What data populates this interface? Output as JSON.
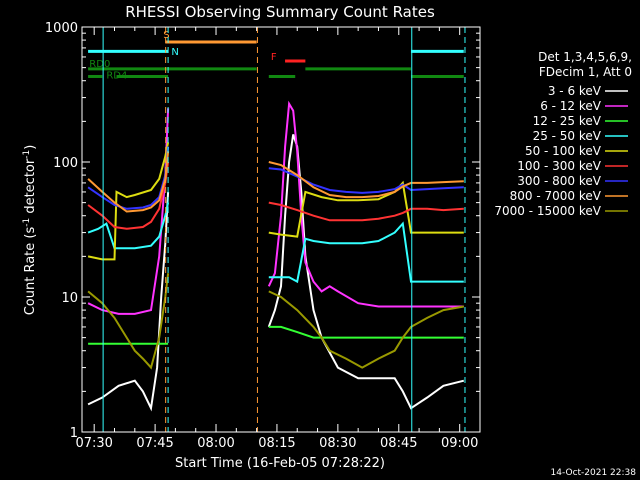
{
  "chart_data": {
    "type": "line",
    "title": "RHESSI Observing Summary Count Rates",
    "xlabel": "Start Time (16-Feb-05 07:28:22)",
    "ylabel": "Count Rate (s⁻¹ detector⁻¹)",
    "ylabel_main": "Count Rate (s",
    "ylabel_sup1": "-1",
    "ylabel_mid": " detector",
    "ylabel_sup2": "-1",
    "ylabel_end": ")",
    "y_scale": "log",
    "ylim": [
      1,
      1000
    ],
    "xlim_minutes": [
      7.47,
      95.5
    ],
    "x_ticks": [
      {
        "label": "07:30",
        "min": 30
      },
      {
        "label": "07:45",
        "min": 45
      },
      {
        "label": "08:00",
        "min": 60
      },
      {
        "label": "08:15",
        "min": 75
      },
      {
        "label": "08:30",
        "min": 90
      },
      {
        "label": "08:45",
        "min": 105
      },
      {
        "label": "09:00",
        "min": 120
      }
    ],
    "y_ticks": [
      {
        "label": "1",
        "value": 1
      },
      {
        "label": "10",
        "value": 10
      },
      {
        "label": "100",
        "value": 100
      },
      {
        "label": "1000",
        "value": 1000
      }
    ],
    "legend_header": [
      "Det 1,3,4,5,6,9,",
      "FDecim 1, Att 0"
    ],
    "series": [
      {
        "name": "3 - 6 keV",
        "color": "#ffffff",
        "points": [
          [
            28.5,
            1.6
          ],
          [
            32,
            1.8
          ],
          [
            36,
            2.2
          ],
          [
            40,
            2.4
          ],
          [
            42,
            2
          ],
          [
            44,
            1.5
          ],
          [
            45.5,
            3
          ],
          [
            46.5,
            10
          ],
          [
            47.5,
            25
          ],
          [
            48.2,
            60
          ],
          [
            73,
            6
          ],
          [
            74.5,
            8
          ],
          [
            76,
            12
          ],
          [
            77,
            40
          ],
          [
            78,
            100
          ],
          [
            79,
            160
          ],
          [
            80,
            130
          ],
          [
            81,
            60
          ],
          [
            82,
            20
          ],
          [
            84,
            8
          ],
          [
            86,
            5
          ],
          [
            90,
            3
          ],
          [
            95,
            2.5
          ],
          [
            100,
            2.5
          ],
          [
            104,
            2.5
          ],
          [
            106,
            2
          ],
          [
            108,
            1.5
          ],
          [
            112,
            1.8
          ],
          [
            116,
            2.2
          ],
          [
            121,
            2.4
          ]
        ]
      },
      {
        "name": "6 - 12 keV",
        "color": "#ff33ff",
        "points": [
          [
            28.5,
            9
          ],
          [
            32,
            8
          ],
          [
            36,
            7.5
          ],
          [
            40,
            7.5
          ],
          [
            44,
            8
          ],
          [
            46,
            20
          ],
          [
            47.5,
            80
          ],
          [
            48.2,
            250
          ],
          [
            73,
            12
          ],
          [
            74.5,
            15
          ],
          [
            76,
            40
          ],
          [
            77,
            130
          ],
          [
            78,
            270
          ],
          [
            79,
            240
          ],
          [
            80,
            120
          ],
          [
            81,
            40
          ],
          [
            82,
            18
          ],
          [
            84,
            13
          ],
          [
            86,
            11
          ],
          [
            88,
            12
          ],
          [
            90,
            11
          ],
          [
            95,
            9
          ],
          [
            100,
            8.5
          ],
          [
            105,
            8.5
          ],
          [
            108,
            8.5
          ],
          [
            112,
            8.5
          ],
          [
            116,
            8.5
          ],
          [
            121,
            8.5
          ]
        ]
      },
      {
        "name": "12 - 25 keV",
        "color": "#33ff33",
        "points": [
          [
            28.5,
            4.5
          ],
          [
            32,
            4.5
          ],
          [
            36,
            4.5
          ],
          [
            40,
            4.5
          ],
          [
            44,
            4.5
          ],
          [
            47,
            4.5
          ],
          [
            48.2,
            4.5
          ],
          [
            73,
            6
          ],
          [
            76,
            6
          ],
          [
            80,
            5.5
          ],
          [
            84,
            5
          ],
          [
            90,
            5
          ],
          [
            95,
            5
          ],
          [
            100,
            5
          ],
          [
            105,
            5
          ],
          [
            108,
            5
          ],
          [
            112,
            5
          ],
          [
            116,
            5
          ],
          [
            121,
            5
          ]
        ]
      },
      {
        "name": "25 - 50 keV",
        "color": "#33ffff",
        "points": [
          [
            28.5,
            30
          ],
          [
            31,
            32
          ],
          [
            33,
            35
          ],
          [
            35,
            23
          ],
          [
            40,
            23
          ],
          [
            44,
            24
          ],
          [
            46,
            28
          ],
          [
            47.5,
            40
          ],
          [
            48.2,
            50
          ],
          [
            73,
            14
          ],
          [
            75,
            14
          ],
          [
            78,
            14
          ],
          [
            80,
            13
          ],
          [
            82,
            27
          ],
          [
            84,
            26
          ],
          [
            88,
            25
          ],
          [
            92,
            25
          ],
          [
            96,
            25
          ],
          [
            100,
            26
          ],
          [
            104,
            30
          ],
          [
            106,
            35
          ],
          [
            108,
            13
          ],
          [
            112,
            13
          ],
          [
            116,
            13
          ],
          [
            121,
            13
          ]
        ]
      },
      {
        "name": "50 - 100 keV",
        "color": "#dddd11",
        "points": [
          [
            28.5,
            20
          ],
          [
            32,
            19
          ],
          [
            35,
            19
          ],
          [
            35.5,
            60
          ],
          [
            38,
            55
          ],
          [
            40,
            57
          ],
          [
            44,
            62
          ],
          [
            46,
            75
          ],
          [
            47.5,
            110
          ],
          [
            48.2,
            140
          ],
          [
            73,
            30
          ],
          [
            76,
            29
          ],
          [
            80,
            28
          ],
          [
            82,
            60
          ],
          [
            86,
            55
          ],
          [
            90,
            52
          ],
          [
            95,
            52
          ],
          [
            100,
            53
          ],
          [
            104,
            60
          ],
          [
            106,
            70
          ],
          [
            108,
            30
          ],
          [
            112,
            30
          ],
          [
            116,
            30
          ],
          [
            121,
            30
          ]
        ]
      },
      {
        "name": "100 - 300 keV",
        "color": "#ff3333",
        "points": [
          [
            28.5,
            48
          ],
          [
            32,
            40
          ],
          [
            35,
            33
          ],
          [
            38,
            32
          ],
          [
            42,
            33
          ],
          [
            44,
            36
          ],
          [
            46,
            45
          ],
          [
            47.5,
            70
          ],
          [
            48.2,
            100
          ],
          [
            73,
            50
          ],
          [
            76,
            48
          ],
          [
            80,
            44
          ],
          [
            84,
            40
          ],
          [
            88,
            37
          ],
          [
            92,
            37
          ],
          [
            96,
            37
          ],
          [
            100,
            38
          ],
          [
            104,
            40
          ],
          [
            106,
            42
          ],
          [
            108,
            45
          ],
          [
            112,
            45
          ],
          [
            116,
            44
          ],
          [
            121,
            45
          ]
        ]
      },
      {
        "name": "300 - 800 keV",
        "color": "#3333ff",
        "points": [
          [
            28.5,
            65
          ],
          [
            32,
            55
          ],
          [
            35,
            48
          ],
          [
            38,
            45
          ],
          [
            42,
            46
          ],
          [
            44,
            48
          ],
          [
            46,
            55
          ],
          [
            47.5,
            80
          ],
          [
            48.2,
            130
          ],
          [
            73,
            90
          ],
          [
            76,
            88
          ],
          [
            80,
            78
          ],
          [
            84,
            68
          ],
          [
            88,
            62
          ],
          [
            92,
            60
          ],
          [
            96,
            59
          ],
          [
            100,
            60
          ],
          [
            104,
            63
          ],
          [
            106,
            68
          ],
          [
            108,
            62
          ],
          [
            112,
            63
          ],
          [
            116,
            64
          ],
          [
            121,
            65
          ]
        ]
      },
      {
        "name": "800 - 7000 keV",
        "color": "#ff9933",
        "points": [
          [
            28.5,
            75
          ],
          [
            32,
            60
          ],
          [
            35,
            50
          ],
          [
            38,
            43
          ],
          [
            42,
            44
          ],
          [
            44,
            46
          ],
          [
            46,
            52
          ],
          [
            47.5,
            75
          ],
          [
            48.2,
            120
          ],
          [
            73,
            100
          ],
          [
            76,
            95
          ],
          [
            80,
            80
          ],
          [
            84,
            65
          ],
          [
            88,
            57
          ],
          [
            92,
            55
          ],
          [
            96,
            55
          ],
          [
            100,
            56
          ],
          [
            104,
            60
          ],
          [
            106,
            66
          ],
          [
            108,
            70
          ],
          [
            112,
            70
          ],
          [
            116,
            71
          ],
          [
            121,
            72
          ]
        ]
      },
      {
        "name": "7000 - 15000 keV",
        "color": "#999900",
        "points": [
          [
            28.5,
            11
          ],
          [
            32,
            9
          ],
          [
            35,
            7
          ],
          [
            38,
            5
          ],
          [
            40,
            4
          ],
          [
            42,
            3.5
          ],
          [
            44,
            3
          ],
          [
            46,
            5
          ],
          [
            47.5,
            10
          ],
          [
            48.2,
            15
          ],
          [
            73,
            11
          ],
          [
            76,
            10
          ],
          [
            80,
            8
          ],
          [
            84,
            6
          ],
          [
            86,
            5
          ],
          [
            88,
            4
          ],
          [
            92,
            3.5
          ],
          [
            96,
            3
          ],
          [
            100,
            3.5
          ],
          [
            104,
            4
          ],
          [
            106,
            5
          ],
          [
            108,
            6
          ],
          [
            112,
            7
          ],
          [
            116,
            8
          ],
          [
            121,
            8.5
          ]
        ]
      }
    ],
    "flag_bars": [
      {
        "label": "S",
        "color": "#ff9933",
        "start": 47.5,
        "end": 70,
        "level": 775
      },
      {
        "label": "N",
        "color": "#33ffff",
        "start": 28.5,
        "end": 48.2,
        "level": 660
      },
      {
        "label": "N",
        "color": "#33ffff",
        "start": 108,
        "end": 121,
        "level": 660
      },
      {
        "label": "F",
        "color": "#ff2222",
        "start": 77,
        "end": 82,
        "level": 560
      },
      {
        "label": "RD0",
        "color": "#118811",
        "start": 28.5,
        "end": 48.2,
        "level": 490
      },
      {
        "label": "RD0",
        "color": "#118811",
        "start": 47.5,
        "end": 70,
        "level": 490
      },
      {
        "label": "RD0",
        "color": "#118811",
        "start": 82,
        "end": 108,
        "level": 490
      },
      {
        "label": "RD4",
        "color": "#118811",
        "start": 28.5,
        "end": 32,
        "level": 430
      },
      {
        "label": "RD4",
        "color": "#118811",
        "start": 35.5,
        "end": 48.2,
        "level": 430
      },
      {
        "label": "RD4",
        "color": "#118811",
        "start": 73,
        "end": 79.5,
        "level": 430
      },
      {
        "label": "RD4",
        "color": "#118811",
        "start": 108,
        "end": 121,
        "level": 430
      }
    ],
    "flag_labels": [
      {
        "text": "S",
        "color": "#ff9933",
        "at": 47,
        "level": 830
      },
      {
        "text": "N",
        "color": "#33ffff",
        "at": 49,
        "level": 620
      },
      {
        "text": "F",
        "color": "#ff2222",
        "at": 73.5,
        "level": 570
      },
      {
        "text": "RD0",
        "color": "#118811",
        "at": 28.8,
        "level": 505
      },
      {
        "text": "RD4",
        "color": "#118811",
        "at": 33,
        "level": 415
      }
    ],
    "vlines": [
      {
        "min": 48.2,
        "color": "#33ffff",
        "style": "dashed"
      },
      {
        "min": 47.6,
        "color": "#ff9933",
        "style": "dashed"
      },
      {
        "min": 70.2,
        "color": "#ff9933",
        "style": "dashed"
      },
      {
        "min": 121.3,
        "color": "#33ffff",
        "style": "dashed"
      },
      {
        "min": 32.2,
        "color": "#33ffff",
        "style": "solid"
      },
      {
        "min": 108.2,
        "color": "#33ffff",
        "style": "solid"
      }
    ],
    "footer_date": "14-Oct-2021 22:38"
  }
}
